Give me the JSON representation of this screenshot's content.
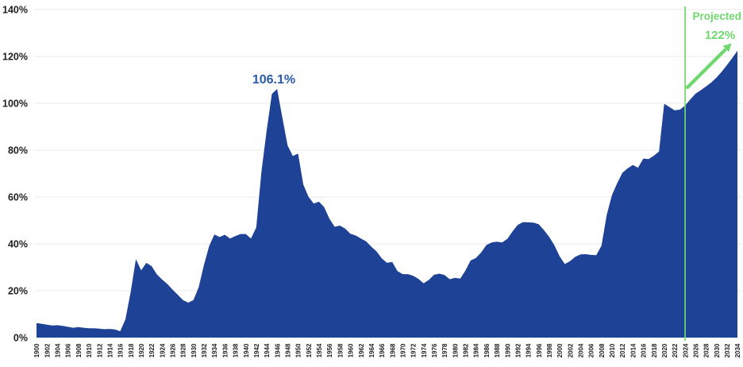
{
  "chart_data": {
    "type": "area",
    "title": "",
    "grid": "horizontal",
    "legend_position": "none",
    "ylim": [
      0,
      140
    ],
    "y_tick_labels": [
      "0%",
      "20%",
      "40%",
      "60%",
      "80%",
      "100%",
      "120%",
      "140%"
    ],
    "x_tick_step": 2,
    "x": [
      1900,
      1901,
      1902,
      1903,
      1904,
      1905,
      1906,
      1907,
      1908,
      1909,
      1910,
      1911,
      1912,
      1913,
      1914,
      1915,
      1916,
      1917,
      1918,
      1919,
      1920,
      1921,
      1922,
      1923,
      1924,
      1925,
      1926,
      1927,
      1928,
      1929,
      1930,
      1931,
      1932,
      1933,
      1934,
      1935,
      1936,
      1937,
      1938,
      1939,
      1940,
      1941,
      1942,
      1943,
      1944,
      1945,
      1946,
      1947,
      1948,
      1949,
      1950,
      1951,
      1952,
      1953,
      1954,
      1955,
      1956,
      1957,
      1958,
      1959,
      1960,
      1961,
      1962,
      1963,
      1964,
      1965,
      1966,
      1967,
      1968,
      1969,
      1970,
      1971,
      1972,
      1973,
      1974,
      1975,
      1976,
      1977,
      1978,
      1979,
      1980,
      1981,
      1982,
      1983,
      1984,
      1985,
      1986,
      1987,
      1988,
      1989,
      1990,
      1991,
      1992,
      1993,
      1994,
      1995,
      1996,
      1997,
      1998,
      1999,
      2000,
      2001,
      2002,
      2003,
      2004,
      2005,
      2006,
      2007,
      2008,
      2009,
      2010,
      2011,
      2012,
      2013,
      2014,
      2015,
      2016,
      2017,
      2018,
      2019,
      2020,
      2021,
      2022,
      2023,
      2024,
      2025,
      2026,
      2027,
      2028,
      2029,
      2030,
      2031,
      2032,
      2033,
      2034
    ],
    "values": [
      6.2,
      5.9,
      5.5,
      5.2,
      5.3,
      5.0,
      4.6,
      4.2,
      4.5,
      4.2,
      4.0,
      4.0,
      3.8,
      3.6,
      3.7,
      3.5,
      2.7,
      7.8,
      19.4,
      33.5,
      28.7,
      31.9,
      30.5,
      27.0,
      24.8,
      22.9,
      20.5,
      18.3,
      16.0,
      14.9,
      16.0,
      21.5,
      31.0,
      39.1,
      44.0,
      42.9,
      43.9,
      42.3,
      43.3,
      44.2,
      44.2,
      42.3,
      47.0,
      70.9,
      88.3,
      104.0,
      106.1,
      93.9,
      82.0,
      77.5,
      78.5,
      65.3,
      60.1,
      57.2,
      58.0,
      55.7,
      50.7,
      47.3,
      47.8,
      46.5,
      44.3,
      43.6,
      42.3,
      41.1,
      38.8,
      36.8,
      33.8,
      31.9,
      32.3,
      28.4,
      27.1,
      27.1,
      26.4,
      25.1,
      23.2,
      24.6,
      26.8,
      27.3,
      26.7,
      24.9,
      25.5,
      25.2,
      28.6,
      32.9,
      34.0,
      36.3,
      39.5,
      40.6,
      40.9,
      40.6,
      42.1,
      45.3,
      48.1,
      49.3,
      49.2,
      49.1,
      48.4,
      45.9,
      43.0,
      39.4,
      34.7,
      31.4,
      32.6,
      34.5,
      35.5,
      35.6,
      35.3,
      35.2,
      39.2,
      52.3,
      60.8,
      65.8,
      70.3,
      72.2,
      73.7,
      72.5,
      76.4,
      76.2,
      77.6,
      79.4,
      99.8,
      98.4,
      97.0,
      97.3,
      99.0,
      101.7,
      104.1,
      105.6,
      107.2,
      108.9,
      111.0,
      113.5,
      116.3,
      119.3,
      122.4
    ],
    "annotations": {
      "peak_label": "106.1%",
      "peak_year": 1946,
      "projected_label": "Projected",
      "projected_value": "122%"
    },
    "projection": {
      "divider_year": 2024,
      "start_year": 2024,
      "end_year": 2034
    },
    "colors": {
      "area_blue": "#1e4296",
      "annotation_blue": "#2a5aa8",
      "projection_green": "#6fd96f",
      "gridline": "#e9e9e9",
      "axis_text": "#1f1f1f"
    }
  }
}
